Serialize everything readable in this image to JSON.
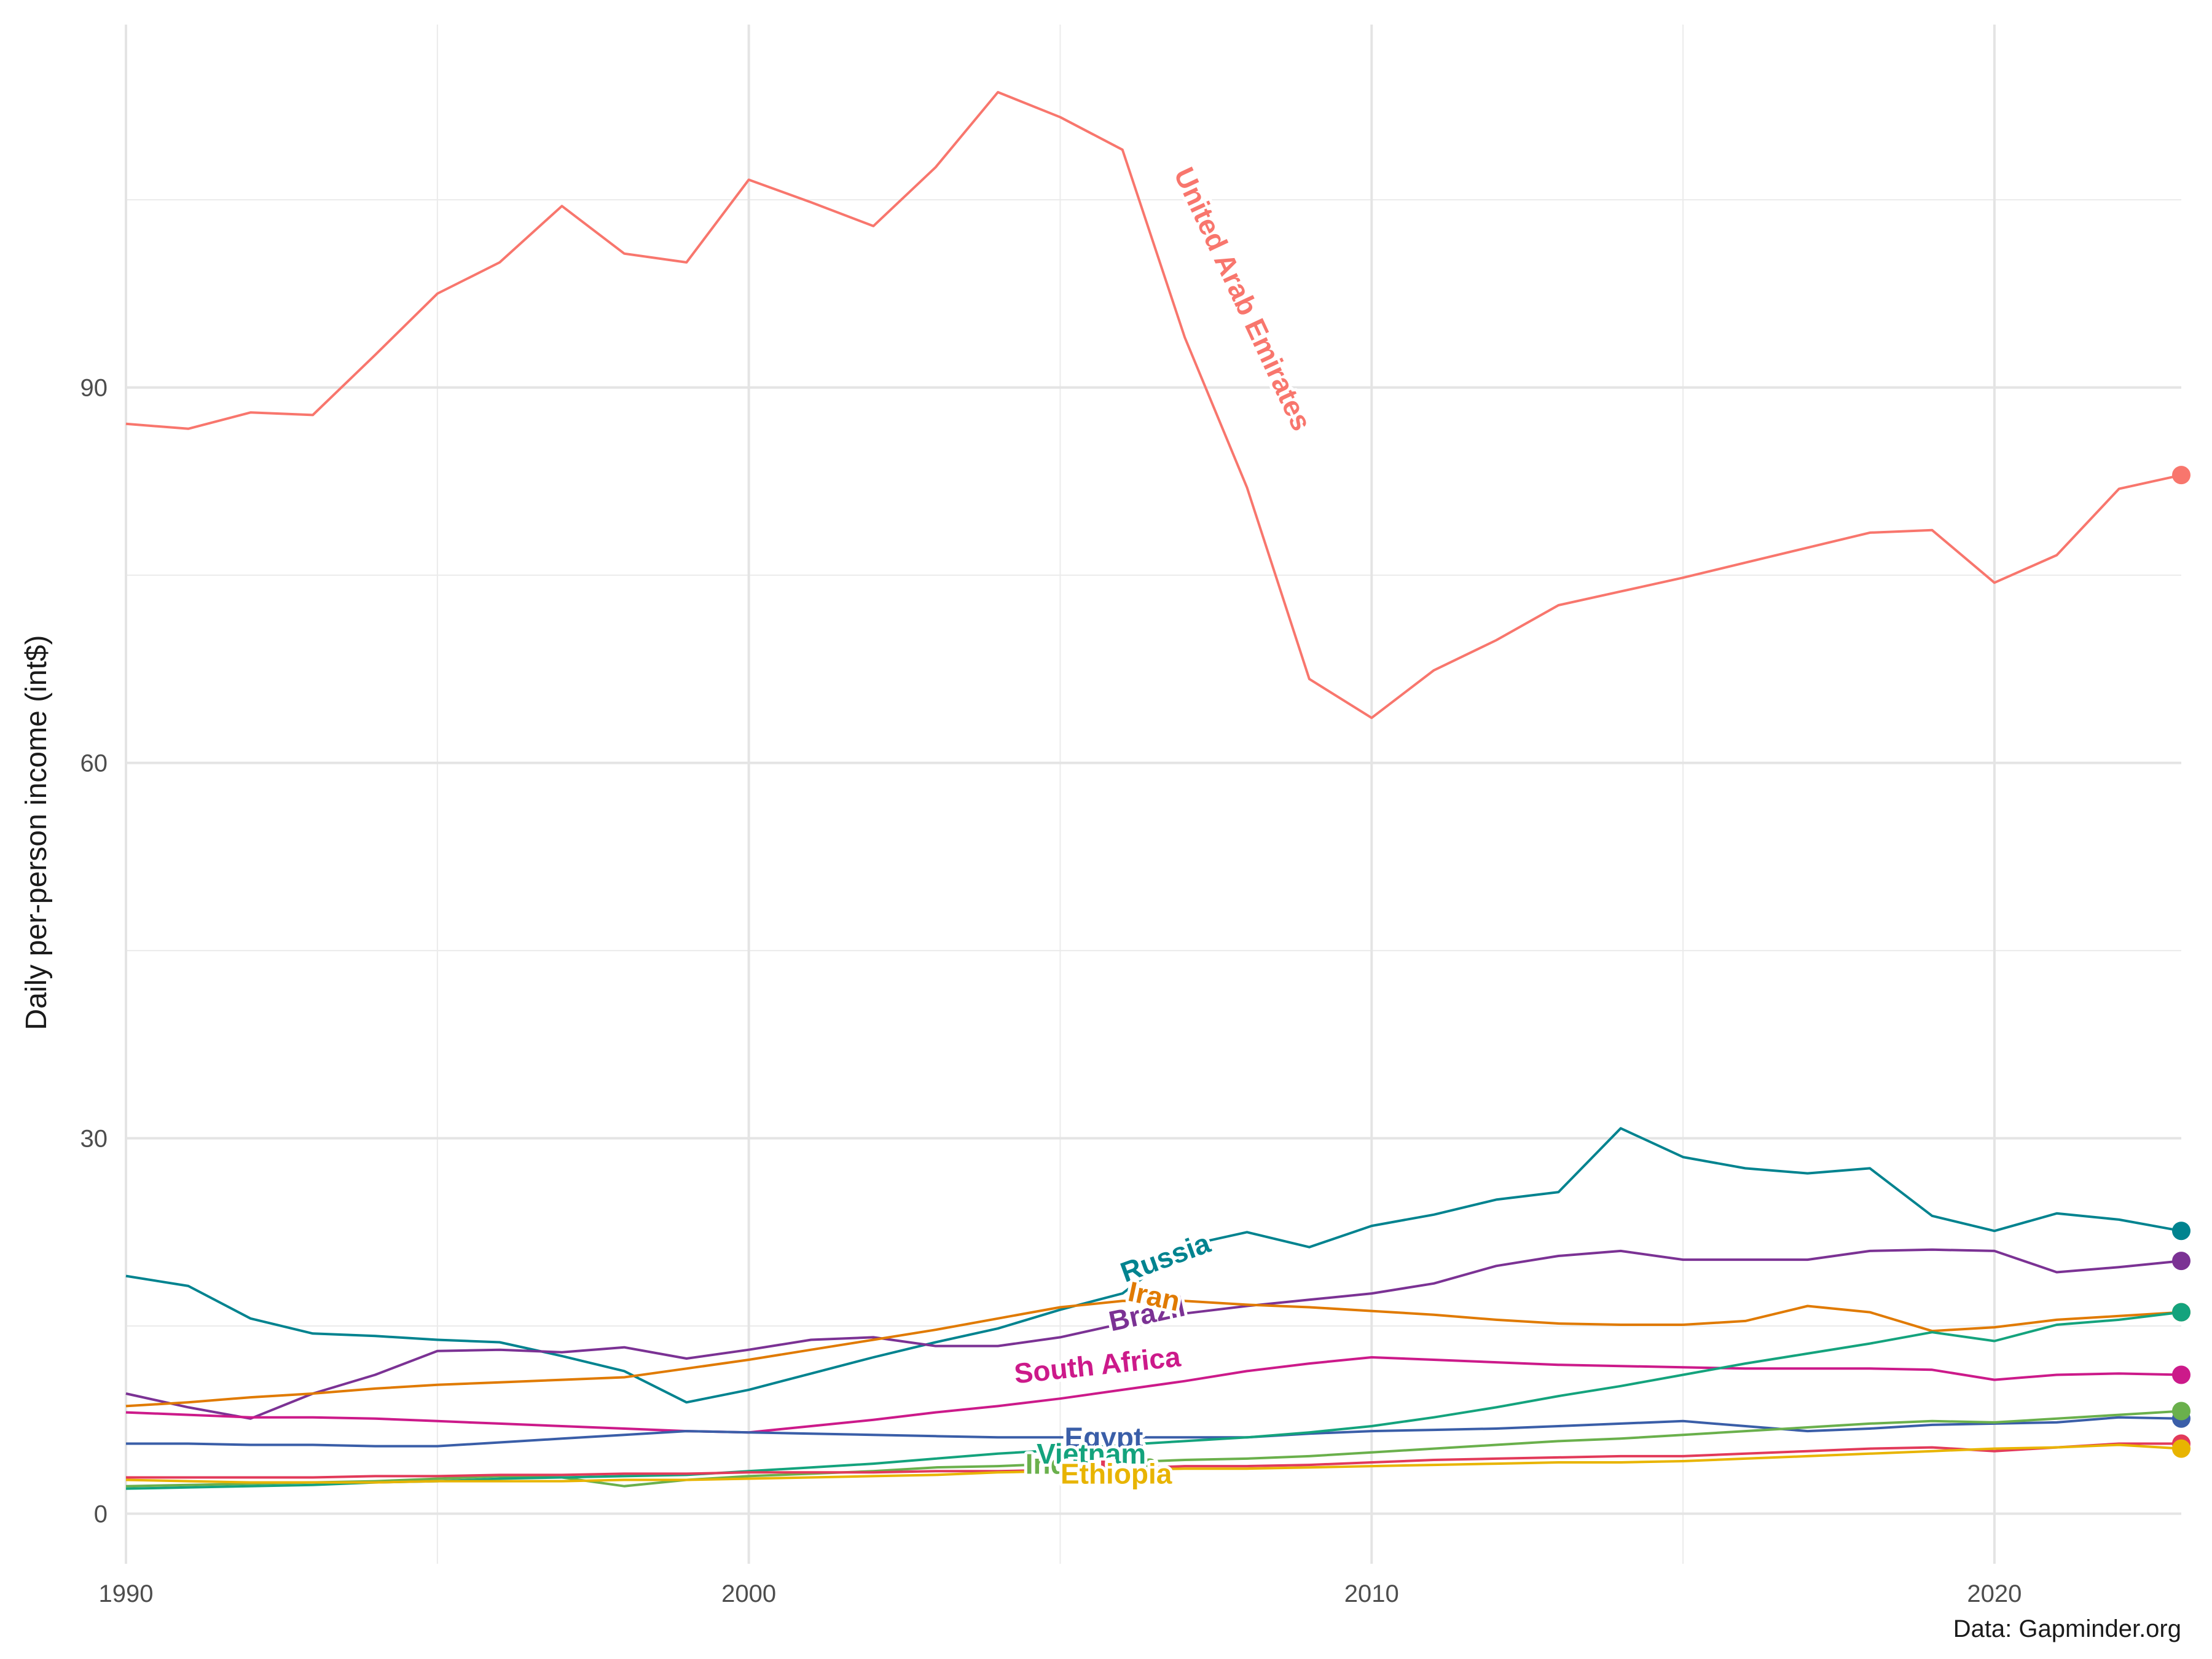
{
  "caption": "Data: Gapminder.org",
  "chart_data": {
    "type": "line",
    "title": "",
    "xlabel": "",
    "ylabel": "Daily per-person income (int$)",
    "xlim": [
      1990,
      2023
    ],
    "ylim": [
      -4,
      119
    ],
    "x_ticks": [
      1990,
      2000,
      2010,
      2020
    ],
    "y_ticks": [
      0,
      30,
      60,
      90
    ],
    "grid": true,
    "x": [
      1990,
      1991,
      1992,
      1993,
      1994,
      1995,
      1996,
      1997,
      1998,
      1999,
      2000,
      2001,
      2002,
      2003,
      2004,
      2005,
      2006,
      2007,
      2008,
      2009,
      2010,
      2011,
      2012,
      2013,
      2014,
      2015,
      2016,
      2017,
      2018,
      2019,
      2020,
      2021,
      2022,
      2023
    ],
    "series": [
      {
        "name": "United Arab Emirates",
        "color": "#f8766d",
        "label_pos": [
          2007.9,
          97
        ],
        "label_angle": 65,
        "values": [
          87.1,
          86.7,
          88.0,
          87.8,
          92.6,
          97.5,
          100.0,
          104.5,
          100.7,
          100.0,
          106.6,
          104.8,
          102.9,
          107.6,
          113.6,
          111.6,
          109.0,
          94.0,
          82.0,
          66.7,
          63.6,
          67.4,
          69.8,
          72.6,
          73.7,
          74.8,
          76.0,
          77.2,
          78.4,
          78.6,
          74.4,
          76.6,
          81.9,
          83.0
        ]
      },
      {
        "name": "Russia",
        "color": "#00838f",
        "label_pos": [
          2006.7,
          20.3
        ],
        "label_angle": -20,
        "values": [
          19.0,
          18.2,
          15.6,
          14.4,
          14.2,
          13.9,
          13.7,
          12.6,
          11.4,
          8.9,
          9.9,
          11.2,
          12.5,
          13.7,
          14.8,
          16.3,
          17.6,
          21.4,
          22.5,
          21.3,
          23.0,
          23.9,
          25.1,
          25.7,
          30.8,
          28.5,
          27.6,
          27.2,
          27.6,
          23.8,
          22.6,
          24.0,
          23.5,
          22.6
        ]
      },
      {
        "name": "Brazil",
        "color": "#7b3294",
        "label_pos": [
          2006.4,
          15.8
        ],
        "label_angle": -12,
        "values": [
          9.6,
          8.5,
          7.6,
          9.6,
          11.1,
          13.0,
          13.1,
          12.9,
          13.3,
          12.4,
          13.1,
          13.9,
          14.1,
          13.4,
          13.4,
          14.1,
          15.2,
          16.0,
          16.6,
          17.1,
          17.6,
          18.4,
          19.8,
          20.6,
          21.0,
          20.3,
          20.3,
          20.3,
          21.0,
          21.1,
          21.0,
          19.3,
          19.7,
          20.2
        ]
      },
      {
        "name": "Iran",
        "color": "#e07a00",
        "label_pos": [
          2006.5,
          17.2
        ],
        "label_angle": 12,
        "values": [
          8.6,
          8.9,
          9.3,
          9.6,
          10.0,
          10.3,
          10.5,
          10.7,
          10.9,
          11.6,
          12.3,
          13.1,
          13.9,
          14.7,
          15.6,
          16.5,
          17.0,
          17.0,
          16.7,
          16.5,
          16.2,
          15.9,
          15.5,
          15.2,
          15.1,
          15.1,
          15.4,
          16.6,
          16.1,
          14.6,
          14.9,
          15.5,
          15.8,
          16.1
        ]
      },
      {
        "name": "South Africa",
        "color": "#cc1a8a",
        "label_pos": [
          2005.6,
          11.7
        ],
        "label_angle": -6,
        "values": [
          8.1,
          7.9,
          7.7,
          7.7,
          7.6,
          7.4,
          7.2,
          7.0,
          6.8,
          6.6,
          6.5,
          7.0,
          7.5,
          8.1,
          8.6,
          9.2,
          9.9,
          10.6,
          11.4,
          12.0,
          12.5,
          12.3,
          12.1,
          11.9,
          11.8,
          11.7,
          11.6,
          11.6,
          11.6,
          11.5,
          10.7,
          11.1,
          11.2,
          11.1
        ]
      },
      {
        "name": "Egypt",
        "color": "#3a5ea8",
        "label_pos": [
          2005.7,
          5.9
        ],
        "label_angle": 0,
        "values": [
          5.6,
          5.6,
          5.5,
          5.5,
          5.4,
          5.4,
          5.7,
          6.0,
          6.3,
          6.6,
          6.5,
          6.4,
          6.3,
          6.2,
          6.1,
          6.1,
          6.1,
          6.1,
          6.1,
          6.4,
          6.6,
          6.7,
          6.8,
          7.0,
          7.2,
          7.4,
          7.0,
          6.6,
          6.8,
          7.1,
          7.2,
          7.3,
          7.7,
          7.6
        ]
      },
      {
        "name": "Indonesia",
        "color": "#6ab04c",
        "label_pos": [
          2005.5,
          3.8
        ],
        "label_angle": 0,
        "values": [
          2.2,
          2.3,
          2.4,
          2.5,
          2.6,
          2.8,
          3.0,
          2.9,
          2.2,
          2.7,
          3.0,
          3.2,
          3.4,
          3.7,
          3.8,
          4.0,
          4.1,
          4.3,
          4.4,
          4.6,
          4.9,
          5.2,
          5.5,
          5.8,
          6.0,
          6.3,
          6.6,
          6.9,
          7.2,
          7.4,
          7.3,
          7.6,
          7.9,
          8.2
        ]
      },
      {
        "name": "Vietnam",
        "color": "#14a37d",
        "label_pos": [
          2005.5,
          4.6
        ],
        "label_angle": 0,
        "values": [
          2.0,
          2.1,
          2.2,
          2.3,
          2.5,
          2.6,
          2.8,
          2.9,
          3.0,
          3.1,
          3.4,
          3.7,
          4.0,
          4.4,
          4.8,
          5.1,
          5.5,
          5.8,
          6.1,
          6.5,
          7.0,
          7.7,
          8.5,
          9.4,
          10.2,
          11.1,
          12.0,
          12.8,
          13.6,
          14.5,
          13.8,
          15.1,
          15.5,
          16.1
        ]
      },
      {
        "name": "India",
        "color": "#e23a5a",
        "label_pos": [
          2005.6,
          3.2
        ],
        "label_angle": 0,
        "values": [
          2.9,
          2.9,
          2.9,
          2.9,
          3.0,
          3.0,
          3.1,
          3.1,
          3.2,
          3.2,
          3.3,
          3.3,
          3.3,
          3.4,
          3.4,
          3.5,
          3.6,
          3.8,
          3.8,
          3.9,
          4.1,
          4.3,
          4.4,
          4.5,
          4.6,
          4.6,
          4.8,
          5.0,
          5.2,
          5.3,
          5.0,
          5.3,
          5.6,
          5.6
        ]
      },
      {
        "name": "Ethiopia",
        "color": "#e8b400",
        "label_pos": [
          2005.9,
          3.0
        ],
        "label_angle": 0,
        "values": [
          2.7,
          2.6,
          2.5,
          2.5,
          2.5,
          2.6,
          2.6,
          2.6,
          2.7,
          2.7,
          2.8,
          2.9,
          3.0,
          3.1,
          3.3,
          3.4,
          3.5,
          3.6,
          3.6,
          3.7,
          3.8,
          3.9,
          4.0,
          4.1,
          4.1,
          4.2,
          4.4,
          4.6,
          4.8,
          5.0,
          5.2,
          5.3,
          5.5,
          5.2
        ]
      }
    ]
  }
}
